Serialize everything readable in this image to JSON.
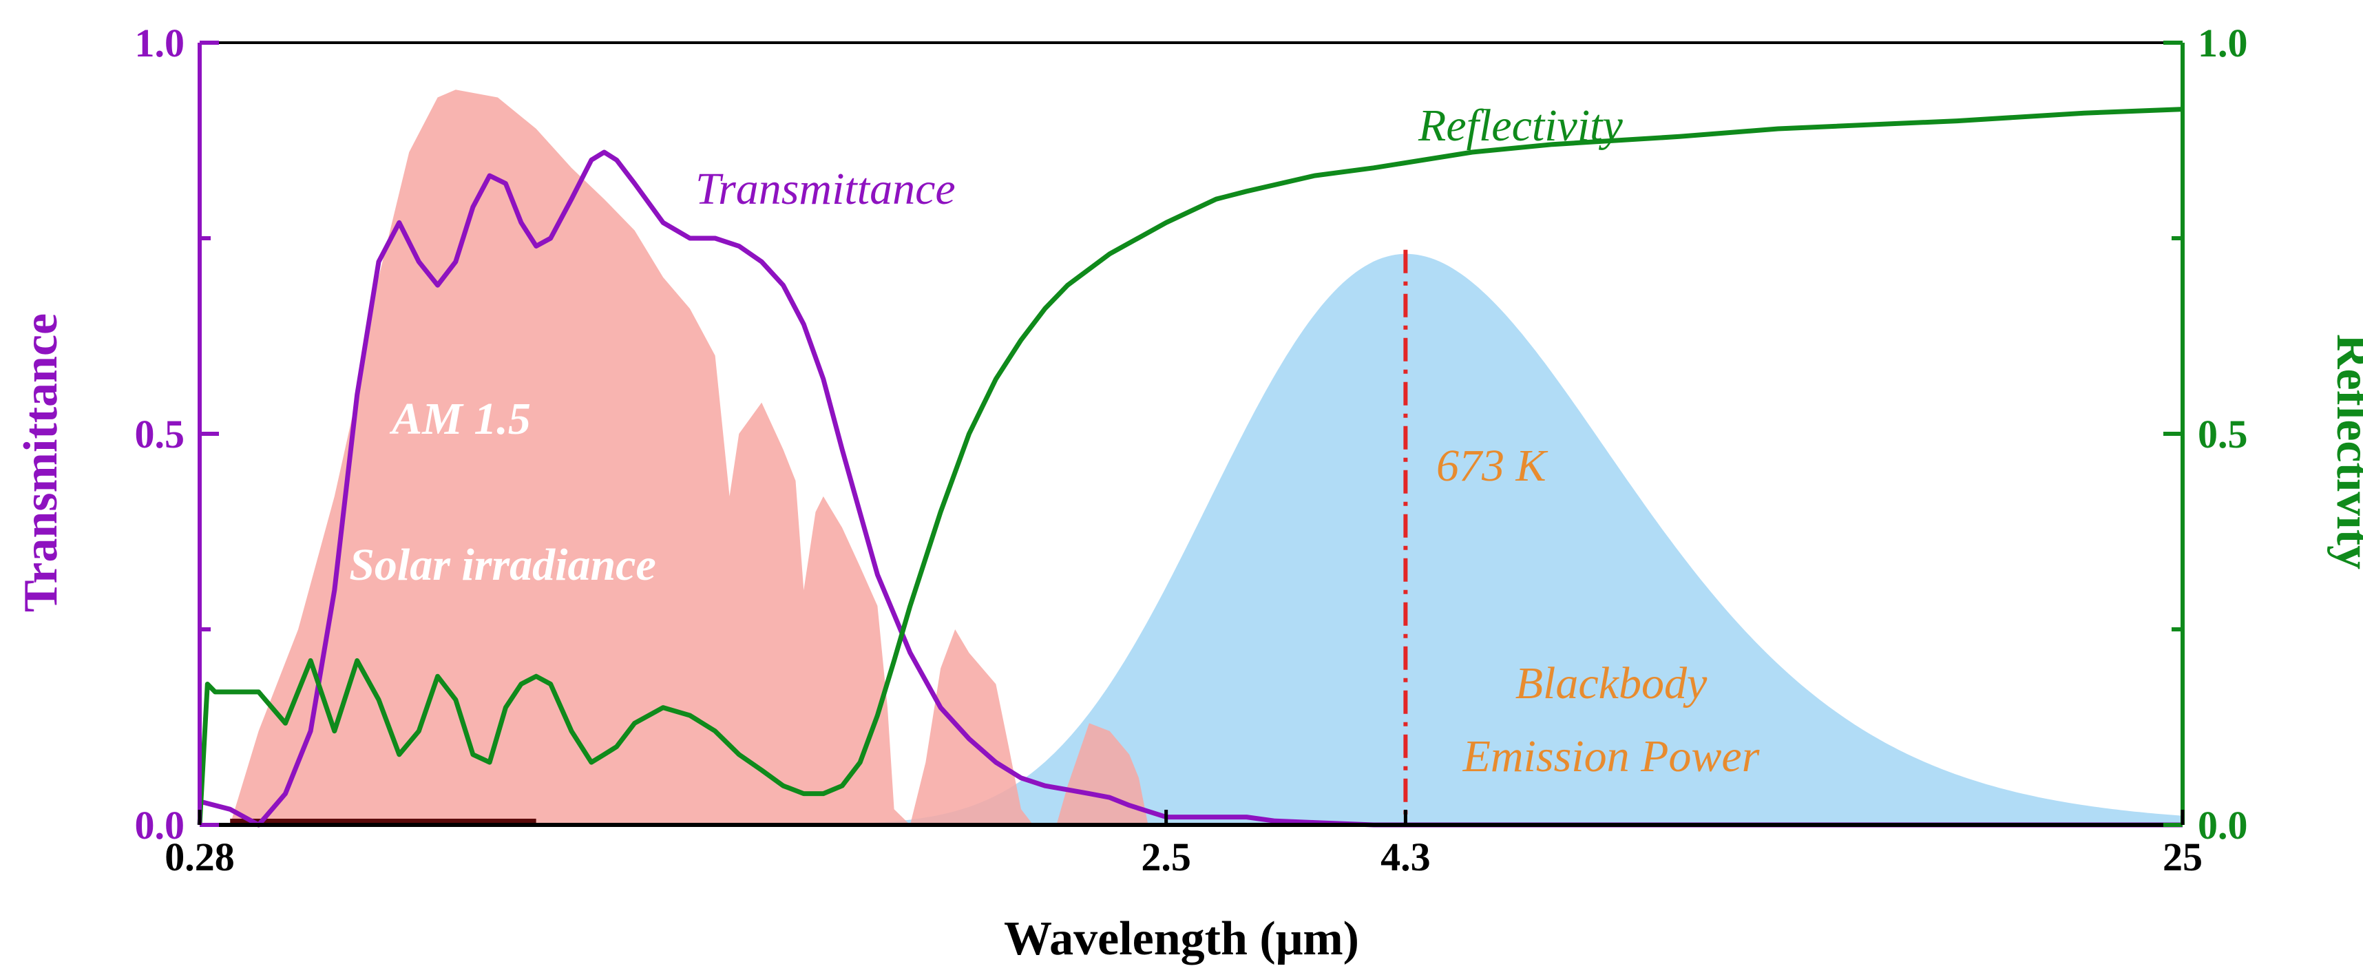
{
  "chart_data": {
    "type": "line",
    "xlabel": "Wavelength (μm)",
    "ylabel_left": "Transmittance",
    "ylabel_right": "Reflectivity",
    "x_scale": "log",
    "xlim": [
      0.28,
      25
    ],
    "ylim_left": [
      0,
      1.0
    ],
    "ylim_right": [
      0,
      1.0
    ],
    "x_ticks": [
      {
        "value": 0.28,
        "label": "0.28"
      },
      {
        "value": 2.5,
        "label": "2.5"
      },
      {
        "value": 4.3,
        "label": "4.3"
      },
      {
        "value": 25,
        "label": "25"
      }
    ],
    "y_ticks_left": [
      {
        "value": 0.0,
        "label": "0.0"
      },
      {
        "value": 0.5,
        "label": "0.5"
      },
      {
        "value": 1.0,
        "label": "1.0"
      }
    ],
    "y_ticks_right": [
      {
        "value": 0.0,
        "label": "0.0"
      },
      {
        "value": 0.5,
        "label": "0.5"
      },
      {
        "value": 1.0,
        "label": "1.0"
      }
    ],
    "grid": false,
    "colors": {
      "transmittance": "#8e12c0",
      "reflectivity": "#0f8a1b",
      "solar": "#f7a7a2",
      "blackbody": "#a9d8f5",
      "peak_line": "#e32626",
      "orange_text": "#e88b2e",
      "axis": "#000000",
      "uv_bar": "#5a0a0a"
    },
    "series": [
      {
        "name": "Transmittance",
        "axis": "left",
        "x": [
          0.28,
          0.3,
          0.32,
          0.34,
          0.36,
          0.38,
          0.4,
          0.42,
          0.44,
          0.46,
          0.48,
          0.5,
          0.52,
          0.54,
          0.56,
          0.58,
          0.6,
          0.62,
          0.65,
          0.68,
          0.7,
          0.72,
          0.75,
          0.8,
          0.85,
          0.9,
          0.95,
          1.0,
          1.05,
          1.1,
          1.15,
          1.2,
          1.3,
          1.4,
          1.5,
          1.6,
          1.7,
          1.8,
          1.9,
          2.0,
          2.1,
          2.2,
          2.3,
          2.5,
          2.8,
          3.0,
          3.2,
          3.5,
          4.0,
          5.0,
          8.0,
          15.0,
          25.0
        ],
        "y": [
          0.03,
          0.02,
          0.0,
          0.04,
          0.12,
          0.3,
          0.55,
          0.72,
          0.77,
          0.72,
          0.69,
          0.72,
          0.79,
          0.83,
          0.82,
          0.77,
          0.74,
          0.75,
          0.8,
          0.85,
          0.86,
          0.85,
          0.82,
          0.77,
          0.75,
          0.75,
          0.74,
          0.72,
          0.69,
          0.64,
          0.57,
          0.48,
          0.32,
          0.22,
          0.15,
          0.11,
          0.08,
          0.06,
          0.05,
          0.045,
          0.04,
          0.035,
          0.025,
          0.01,
          0.01,
          0.01,
          0.005,
          0.003,
          0.0,
          0.0,
          0.0,
          0.0,
          0.0
        ]
      },
      {
        "name": "Reflectivity",
        "axis": "right",
        "x": [
          0.28,
          0.285,
          0.29,
          0.3,
          0.32,
          0.34,
          0.36,
          0.38,
          0.4,
          0.42,
          0.44,
          0.46,
          0.48,
          0.5,
          0.52,
          0.54,
          0.56,
          0.58,
          0.6,
          0.62,
          0.65,
          0.68,
          0.7,
          0.72,
          0.75,
          0.8,
          0.85,
          0.9,
          0.95,
          1.0,
          1.05,
          1.1,
          1.15,
          1.2,
          1.25,
          1.3,
          1.35,
          1.4,
          1.5,
          1.6,
          1.7,
          1.8,
          1.9,
          2.0,
          2.2,
          2.5,
          2.8,
          3.0,
          3.5,
          4.0,
          5.0,
          6.0,
          8.0,
          10.0,
          15.0,
          20.0,
          25.0
        ],
        "y": [
          0.0,
          0.18,
          0.17,
          0.17,
          0.17,
          0.13,
          0.21,
          0.12,
          0.21,
          0.16,
          0.09,
          0.12,
          0.19,
          0.16,
          0.09,
          0.08,
          0.15,
          0.18,
          0.19,
          0.18,
          0.12,
          0.08,
          0.09,
          0.1,
          0.13,
          0.15,
          0.14,
          0.12,
          0.09,
          0.07,
          0.05,
          0.04,
          0.04,
          0.05,
          0.08,
          0.14,
          0.21,
          0.28,
          0.4,
          0.5,
          0.57,
          0.62,
          0.66,
          0.69,
          0.73,
          0.77,
          0.8,
          0.81,
          0.83,
          0.84,
          0.86,
          0.87,
          0.88,
          0.89,
          0.9,
          0.91,
          0.915
        ]
      },
      {
        "name": "AM 1.5 Solar irradiance",
        "type": "area",
        "axis": "left",
        "x": [
          0.28,
          0.3,
          0.32,
          0.35,
          0.38,
          0.4,
          0.42,
          0.45,
          0.48,
          0.5,
          0.55,
          0.6,
          0.65,
          0.7,
          0.75,
          0.8,
          0.85,
          0.9,
          0.93,
          0.95,
          1.0,
          1.05,
          1.08,
          1.1,
          1.13,
          1.15,
          1.2,
          1.25,
          1.3,
          1.33,
          1.35,
          1.4,
          1.45,
          1.5,
          1.55,
          1.6,
          1.7,
          1.75,
          1.8,
          1.85,
          1.95,
          2.0,
          2.1,
          2.2,
          2.3,
          2.35,
          2.4,
          2.5
        ],
        "y": [
          0.0,
          0.0,
          0.12,
          0.25,
          0.42,
          0.55,
          0.7,
          0.86,
          0.93,
          0.94,
          0.93,
          0.89,
          0.84,
          0.8,
          0.76,
          0.7,
          0.66,
          0.6,
          0.42,
          0.5,
          0.54,
          0.48,
          0.44,
          0.3,
          0.4,
          0.42,
          0.38,
          0.33,
          0.28,
          0.15,
          0.02,
          0.0,
          0.08,
          0.2,
          0.25,
          0.22,
          0.18,
          0.1,
          0.02,
          0.0,
          0.0,
          0.05,
          0.13,
          0.12,
          0.09,
          0.06,
          0.0,
          0.0
        ]
      },
      {
        "name": "Blackbody Emission Power",
        "type": "area",
        "axis": "left",
        "temperature_K": 673,
        "peak_wavelength": 4.3,
        "peak_value": 0.73
      }
    ],
    "annotations": {
      "solar_line1": "AM 1.5",
      "solar_line2": "Solar irradiance",
      "transmittance": "Transmittance",
      "reflectivity": "Reflectivity",
      "temperature": "673 K",
      "blackbody_line1": "Blackbody",
      "blackbody_line2": "Emission Power"
    }
  }
}
